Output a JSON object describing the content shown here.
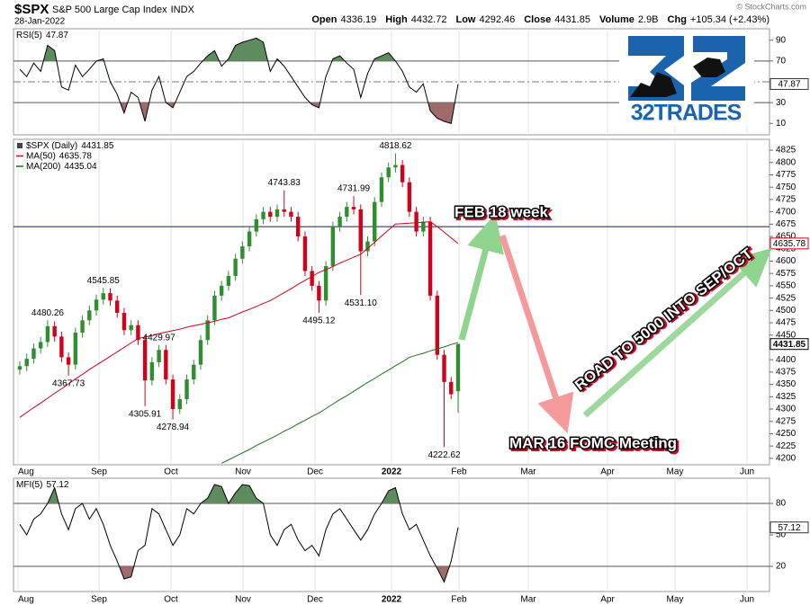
{
  "header": {
    "symbol": "$SPX",
    "name": "S&P 500 Large Cap Index",
    "exchange": "INDX",
    "date": "28-Jan-2022",
    "quote": [
      {
        "label": "Open",
        "value": 4336.19
      },
      {
        "label": "High",
        "value": 4432.72
      },
      {
        "label": "Low",
        "value": 4292.46
      },
      {
        "label": "Close",
        "value": 4431.85
      },
      {
        "label": "Volume",
        "value": "2.9B"
      },
      {
        "label": "Chg",
        "value": "+105.34 (+2.43%)"
      }
    ],
    "credit": "© StockCharts.com"
  },
  "logo": {
    "text": "32TRADES"
  },
  "chart_data": [
    {
      "type": "line",
      "title": "RSI(5)",
      "last": 47.87,
      "color": "#000000",
      "values": [
        62,
        55,
        68,
        60,
        85,
        80,
        45,
        42,
        66,
        55,
        62,
        70,
        72,
        50,
        38,
        20,
        40,
        35,
        12,
        42,
        55,
        30,
        25,
        40,
        55,
        60,
        68,
        75,
        80,
        65,
        72,
        85,
        88,
        90,
        92,
        88,
        60,
        72,
        65,
        55,
        45,
        35,
        28,
        25,
        55,
        72,
        75,
        68,
        62,
        35,
        58,
        72,
        75,
        78,
        70,
        60,
        45,
        40,
        48,
        22,
        15,
        12,
        10,
        47.87
      ],
      "ylim": [
        -1,
        101
      ],
      "yticks": [
        10,
        30,
        70,
        90
      ],
      "midline": 50,
      "upper": 70,
      "lower": 30,
      "upper_color": "#5f8c5f",
      "lower_color": "#9e6b6b"
    },
    {
      "type": "candlestick",
      "title": "$SPX (Daily)",
      "last": 4431.85,
      "up_color": "#2f8f2f",
      "down_color": "#d0021b",
      "open": [
        4380,
        4387,
        4402,
        4423,
        4436,
        4468,
        4447,
        4405,
        4390,
        4455,
        4480,
        4500,
        4522,
        4535,
        4520,
        4495,
        4460,
        4470,
        4440,
        4358,
        4395,
        4420,
        4360,
        4300,
        4320,
        4360,
        4390,
        4440,
        4480,
        4530,
        4550,
        4570,
        4605,
        4630,
        4660,
        4685,
        4700,
        4690,
        4705,
        4700,
        4690,
        4650,
        4580,
        4550,
        4520,
        4590,
        4670,
        4690,
        4710,
        4705,
        4620,
        4640,
        4720,
        4770,
        4790,
        4795,
        4760,
        4700,
        4660,
        4680,
        4530,
        4410,
        4355,
        4336.19
      ],
      "high": [
        4397,
        4412,
        4433,
        4446,
        4480.26,
        4478,
        4457,
        4415,
        4465,
        4490,
        4510,
        4532,
        4545.85,
        4545,
        4530,
        4505,
        4480,
        4480,
        4450,
        4405,
        4429.97,
        4430,
        4370,
        4330,
        4370,
        4400,
        4450,
        4490,
        4540,
        4560,
        4580,
        4615,
        4640,
        4670,
        4695,
        4710,
        4710,
        4715,
        4743.83,
        4710,
        4700,
        4660,
        4590,
        4560,
        4600,
        4680,
        4700,
        4720,
        4731.99,
        4715,
        4650,
        4730,
        4780,
        4800,
        4818.62,
        4805,
        4770,
        4710,
        4690,
        4690,
        4540,
        4420,
        4365,
        4432.72
      ],
      "low": [
        4370,
        4377,
        4392,
        4413,
        4426,
        4437,
        4395,
        4367.73,
        4380,
        4445,
        4470,
        4490,
        4512,
        4510,
        4485,
        4450,
        4450,
        4430,
        4305.91,
        4348,
        4385,
        4350,
        4278.94,
        4290,
        4310,
        4350,
        4380,
        4430,
        4470,
        4520,
        4540,
        4560,
        4595,
        4620,
        4650,
        4675,
        4680,
        4680,
        4690,
        4680,
        4640,
        4570,
        4540,
        4495.12,
        4510,
        4580,
        4660,
        4680,
        4695,
        4531.1,
        4610,
        4630,
        4710,
        4760,
        4780,
        4750,
        4690,
        4650,
        4650,
        4520,
        4400,
        4222.62,
        4320,
        4292.46
      ],
      "close": [
        4387,
        4402,
        4423,
        4436,
        4468,
        4447,
        4405,
        4390,
        4455,
        4480,
        4500,
        4522,
        4535,
        4520,
        4495,
        4460,
        4470,
        4440,
        4358,
        4395,
        4420,
        4360,
        4300,
        4320,
        4360,
        4390,
        4440,
        4480,
        4530,
        4550,
        4570,
        4605,
        4630,
        4660,
        4685,
        4700,
        4690,
        4705,
        4700,
        4690,
        4650,
        4580,
        4550,
        4520,
        4590,
        4670,
        4690,
        4710,
        4705,
        4620,
        4640,
        4720,
        4770,
        4790,
        4795,
        4760,
        4700,
        4660,
        4680,
        4530,
        4410,
        4355,
        4330,
        4431.85
      ],
      "series": [
        {
          "name": "MA(50)",
          "color": "#d0021b",
          "last": 4635.78,
          "values": [
            4283,
            4293,
            4303,
            4312,
            4322,
            4332,
            4341,
            4351,
            4361,
            4370,
            4380,
            4389,
            4398,
            4407,
            4416,
            4425,
            4434,
            4443,
            4446,
            4449,
            4453,
            4456,
            4459,
            4462,
            4466,
            4469,
            4472,
            4475,
            4478,
            4482,
            4485,
            4491,
            4497,
            4502,
            4508,
            4514,
            4520,
            4528,
            4536,
            4544,
            4553,
            4561,
            4569,
            4577,
            4583,
            4589,
            4596,
            4602,
            4608,
            4614,
            4626,
            4638,
            4651,
            4663,
            4675,
            4676,
            4677,
            4678,
            4679,
            4680,
            4670,
            4659,
            4647,
            4635.78
          ]
        },
        {
          "name": "MA(200)",
          "color": "#1f6e1f",
          "last": 4435.04,
          "values": [
            null,
            null,
            null,
            null,
            null,
            null,
            null,
            null,
            null,
            null,
            null,
            null,
            null,
            null,
            null,
            null,
            null,
            null,
            null,
            null,
            null,
            null,
            null,
            null,
            null,
            null,
            null,
            null,
            null,
            4190,
            4197,
            4204,
            4211,
            4218,
            4226,
            4233,
            4240,
            4247,
            4255,
            4262,
            4270,
            4277,
            4285,
            4292,
            4301,
            4310,
            4319,
            4327,
            4336,
            4345,
            4354,
            4362,
            4371,
            4379,
            4388,
            4396,
            4405,
            4409,
            4413,
            4418,
            4422,
            4426,
            4431,
            4435.04
          ]
        }
      ],
      "ylim": [
        4187,
        4847
      ],
      "yticks": [
        4200,
        4225,
        4250,
        4275,
        4300,
        4325,
        4350,
        4375,
        4400,
        4425,
        4450,
        4475,
        4500,
        4525,
        4550,
        4575,
        4600,
        4625,
        4650,
        4675,
        4700,
        4725,
        4750,
        4775,
        4800,
        4825
      ],
      "reference_line": 4670,
      "annotations": [
        4480.26,
        4367.73,
        4545.85,
        4305.91,
        4429.97,
        4278.94,
        4743.83,
        4495.12,
        4731.99,
        {
          "value": 4531.1,
          "label": "4531.10"
        },
        4818.62,
        4222.62
      ],
      "notes": [
        "FEB 18 week",
        "MAR 16 FOMC Meeting",
        "ROAD TO 5000 INTO SEP/OCT"
      ],
      "xlabels": [
        "Aug",
        "Sep",
        "Oct",
        "Nov",
        "Dec",
        "2022",
        "Feb",
        "Mar",
        "Apr",
        "May",
        "Jun"
      ]
    },
    {
      "type": "line",
      "title": "MFI(5)",
      "last": 57.12,
      "color": "#000000",
      "values": [
        60,
        50,
        65,
        70,
        80,
        95,
        70,
        55,
        75,
        80,
        65,
        75,
        60,
        40,
        25,
        8,
        10,
        35,
        40,
        75,
        70,
        55,
        40,
        50,
        75,
        70,
        80,
        85,
        98,
        96,
        80,
        90,
        98,
        97,
        85,
        80,
        50,
        40,
        55,
        60,
        45,
        35,
        40,
        30,
        55,
        70,
        75,
        65,
        55,
        45,
        55,
        70,
        80,
        92,
        95,
        70,
        55,
        60,
        45,
        30,
        18,
        5,
        25,
        57.12
      ],
      "ylim": [
        -4,
        104
      ],
      "yticks": [
        20,
        50,
        80
      ],
      "upper": 80,
      "lower": 20,
      "upper_color": "#5f8c5f",
      "lower_color": "#9e6b6b",
      "xlabels": [
        "Aug",
        "Sep",
        "Oct",
        "Nov",
        "Dec",
        "2022",
        "Feb",
        "Mar",
        "Apr",
        "May",
        "Jun"
      ]
    }
  ]
}
